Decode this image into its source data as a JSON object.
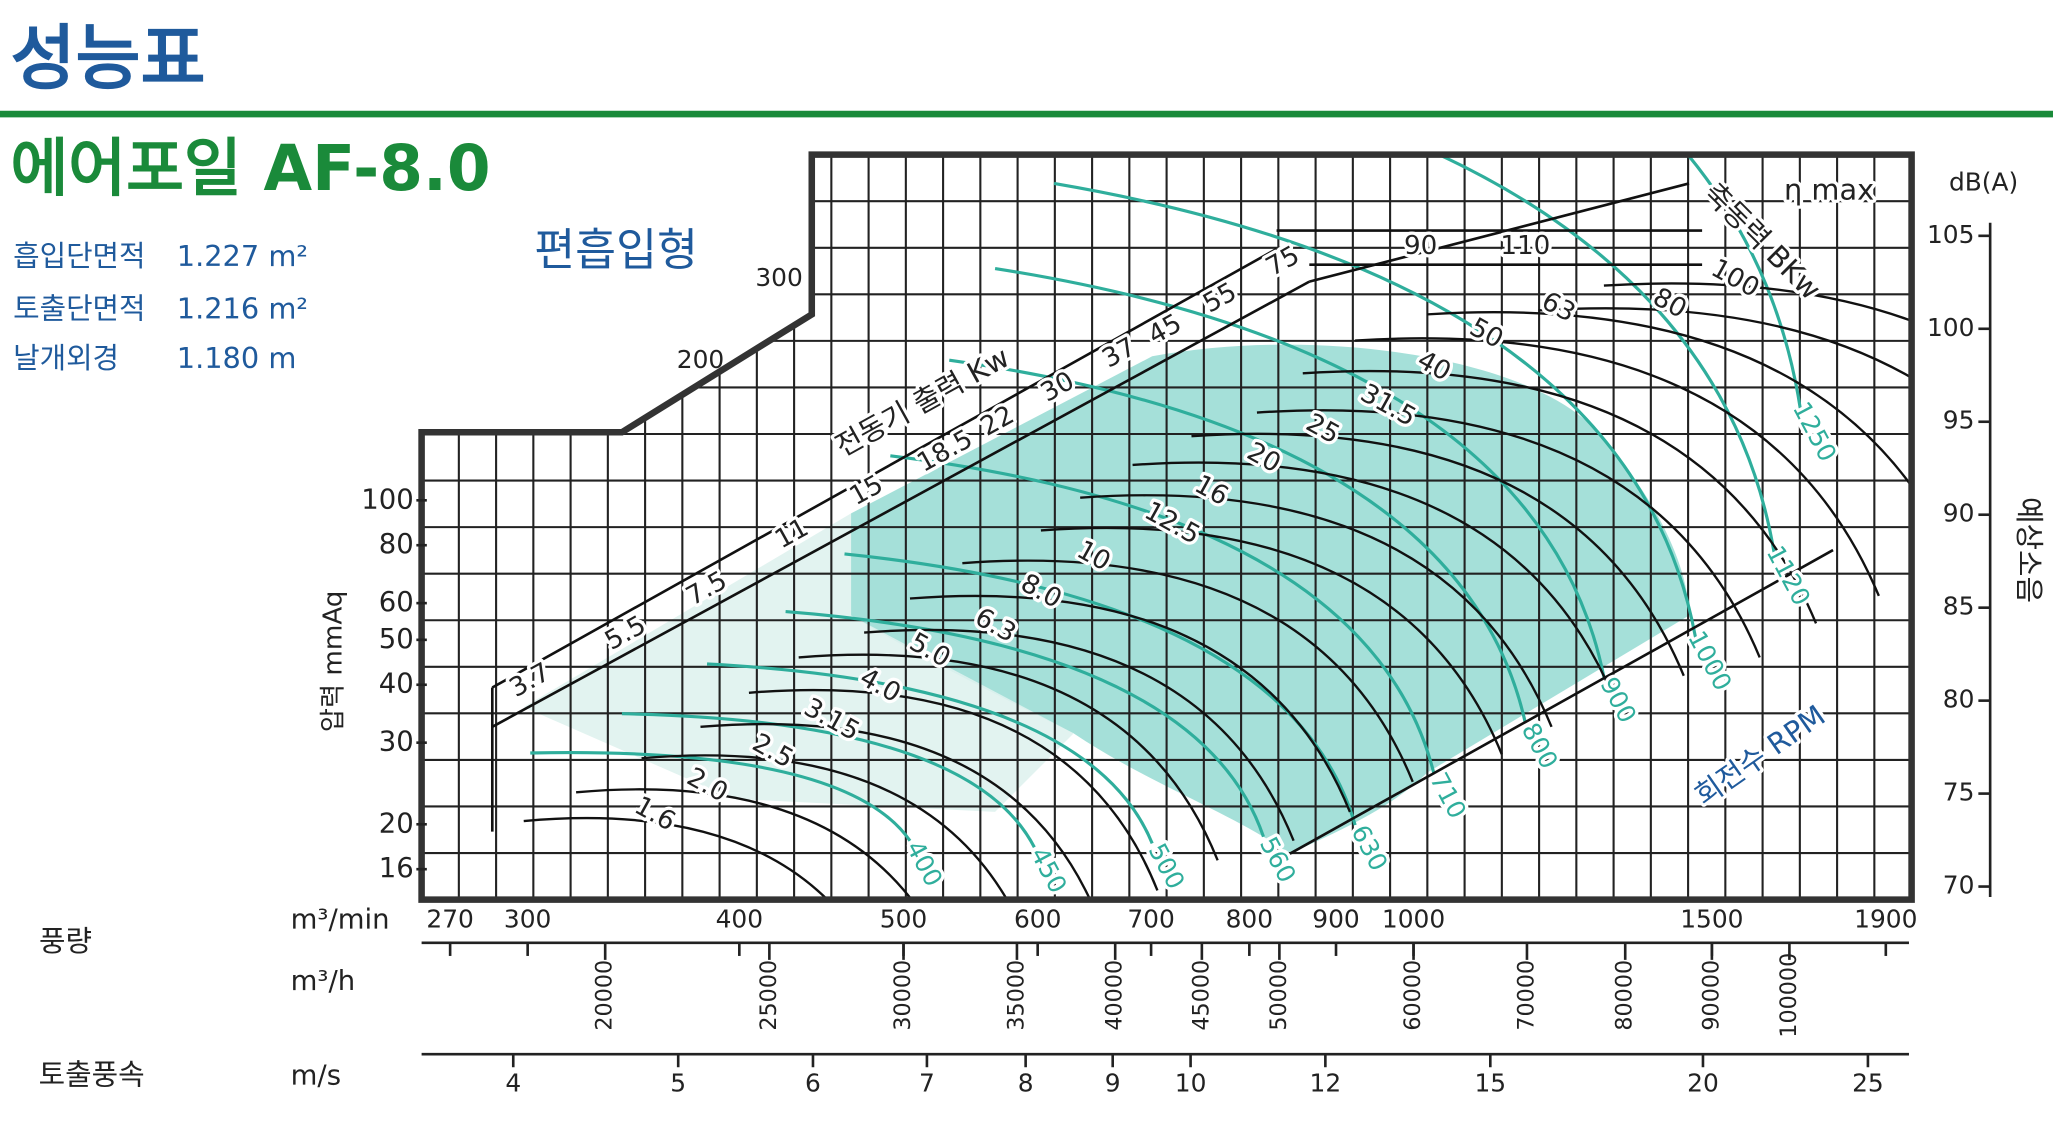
{
  "header": {
    "title": "성능표"
  },
  "product": {
    "name": "에어포일 AF-8.0",
    "type": "편흡입형"
  },
  "specs": [
    {
      "label": "흡입단면적",
      "value": "1.227 m²"
    },
    {
      "label": "토출단면적",
      "value": "1.216 m²"
    },
    {
      "label": "날개외경",
      "value": "1.180 m"
    }
  ],
  "chart": {
    "pressure_axis": {
      "label": "압력 mmAq",
      "ticks": [
        16,
        20,
        30,
        40,
        50,
        60,
        80,
        100
      ],
      "outline_ticks": [
        200,
        300
      ]
    },
    "noise_axis": {
      "unit": "dB(A)",
      "label": "예상소음",
      "ticks": [
        70,
        75,
        80,
        85,
        90,
        95,
        100,
        105
      ]
    },
    "flow_axis": {
      "label": "풍량",
      "unit": "m³/min",
      "ticks": [
        270,
        300,
        400,
        500,
        600,
        700,
        800,
        900,
        1000,
        1500,
        1900
      ]
    },
    "flow_hour_axis": {
      "unit": "m³/h",
      "ticks": [
        20000,
        25000,
        30000,
        35000,
        40000,
        45000,
        50000,
        60000,
        70000,
        80000,
        90000,
        100000
      ]
    },
    "velocity_axis": {
      "label": "토출풍속",
      "unit": "m/s",
      "ticks": [
        4,
        5,
        6,
        7,
        8,
        9,
        10,
        12,
        15,
        20,
        25
      ]
    },
    "motor": {
      "label": "전동기 출력 Kw",
      "values": [
        "3.7",
        "5.5",
        "7.5",
        "11",
        "15",
        "18.5",
        "22",
        "30",
        "37",
        "45",
        "55",
        "75",
        "90",
        "110"
      ]
    },
    "shaft_power": {
      "label": "축동력 BKw",
      "values": [
        "1.6",
        "2.0",
        "2.5",
        "3.15",
        "4.0",
        "5.0",
        "6.3",
        "8.0",
        "10",
        "12.5",
        "16",
        "20",
        "25",
        "31.5",
        "40",
        "50",
        "63",
        "80",
        "100"
      ]
    },
    "speed": {
      "label": "회전수 RPM",
      "values": [
        "400",
        "450",
        "500",
        "560",
        "630",
        "710",
        "800",
        "900",
        "1000",
        "1120",
        "1250"
      ]
    },
    "efficiency": {
      "label": "η max"
    }
  }
}
